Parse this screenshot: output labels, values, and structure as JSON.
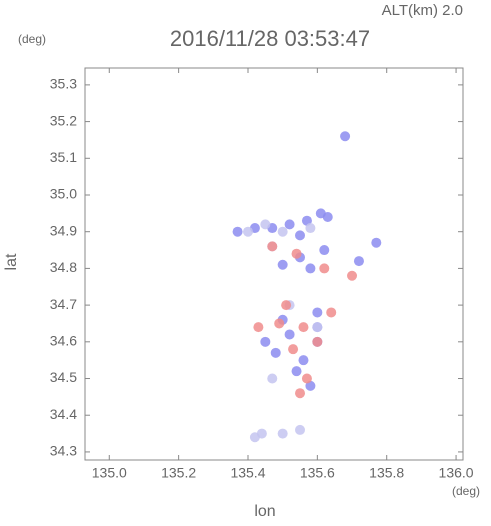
{
  "chart_data": {
    "type": "scatter",
    "title": "2016/11/28 03:53:47",
    "annotation": "ALT(km)  2.0",
    "y_unit": "(deg)",
    "x_unit": "(deg)",
    "x_label": "lon",
    "y_label": "lat",
    "xlim": [
      134.93,
      136.02
    ],
    "ylim": [
      34.278,
      35.346
    ],
    "xticks": [
      {
        "value": 135,
        "label": "135.0"
      },
      135.2,
      135.4,
      135.6,
      135.8,
      {
        "value": 136,
        "label": "136.0"
      }
    ],
    "yticks": [
      34.3,
      34.4,
      34.5,
      34.6,
      34.7,
      34.8,
      34.9,
      {
        "value": 35,
        "label": "35.0"
      },
      35.1,
      35.2,
      35.3
    ],
    "series": [
      {
        "color": "#8c8cf0",
        "x": [
          135.37,
          135.42,
          135.47,
          135.52,
          135.57,
          135.61,
          135.63,
          135.55,
          135.5,
          135.62,
          135.55,
          135.58,
          135.6,
          135.52,
          135.48,
          135.56,
          135.6,
          135.45,
          135.58,
          135.5,
          135.54,
          135.6,
          135.77,
          135.72,
          135.68
        ],
        "y": [
          34.9,
          34.91,
          34.91,
          34.92,
          34.93,
          34.95,
          34.94,
          34.89,
          34.81,
          34.85,
          34.83,
          34.8,
          34.64,
          34.62,
          34.57,
          34.55,
          34.68,
          34.6,
          34.48,
          34.66,
          34.52,
          34.6,
          34.87,
          34.82,
          35.16
        ]
      },
      {
        "color": "#c4c4f0",
        "x": [
          135.4,
          135.45,
          135.5,
          135.58,
          135.47,
          135.44,
          135.5,
          135.55,
          135.6,
          135.42,
          135.47,
          135.52
        ],
        "y": [
          34.9,
          34.92,
          34.9,
          34.91,
          34.86,
          34.35,
          34.35,
          34.36,
          34.64,
          34.34,
          34.5,
          34.7
        ]
      },
      {
        "color": "#f08c8c",
        "x": [
          135.47,
          135.54,
          135.62,
          135.7,
          135.51,
          135.56,
          135.53,
          135.57,
          135.6,
          135.49,
          135.55,
          135.64,
          135.43
        ],
        "y": [
          34.86,
          34.84,
          34.8,
          34.78,
          34.7,
          34.64,
          34.58,
          34.5,
          34.6,
          34.65,
          34.46,
          34.68,
          34.64
        ]
      }
    ]
  }
}
